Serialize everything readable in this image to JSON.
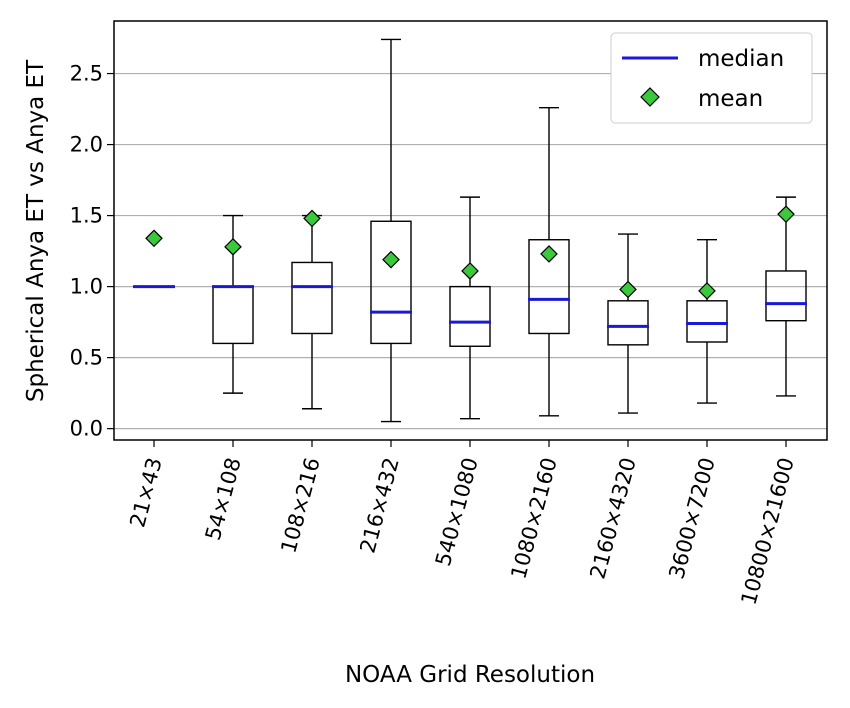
{
  "chart_data": {
    "type": "boxplot",
    "title": "",
    "xlabel": "NOAA Grid Resolution",
    "ylabel": "Spherical Anya ET vs Anya ET",
    "ylim": [
      -0.08,
      2.87
    ],
    "yticks": [
      0.0,
      0.5,
      1.0,
      1.5,
      2.0,
      2.5
    ],
    "ytick_labels": [
      "0.0",
      "0.5",
      "1.0",
      "1.5",
      "2.0",
      "2.5"
    ],
    "grid": "horizontal",
    "legend": {
      "placement": "top-right",
      "entries": [
        {
          "label": "median",
          "marker": "line",
          "color": "#1a1ad6"
        },
        {
          "label": "mean",
          "marker": "diamond",
          "color": "#3cc83c"
        }
      ]
    },
    "colors": {
      "median": "#1a1ad6",
      "mean": "#3cc83c",
      "box": "#000000",
      "grid": "#b0b0b0"
    },
    "categories": [
      "21×43",
      "54×108",
      "108×216",
      "216×432",
      "540×1080",
      "1080×2160",
      "2160×4320",
      "3600×7200",
      "10800×21600"
    ],
    "boxes": [
      {
        "whislo": 1.0,
        "q1": 1.0,
        "med": 1.0,
        "q3": 1.0,
        "whishi": 1.0,
        "mean": 1.34
      },
      {
        "whislo": 0.25,
        "q1": 0.6,
        "med": 1.0,
        "q3": 1.0,
        "whishi": 1.5,
        "mean": 1.28
      },
      {
        "whislo": 0.14,
        "q1": 0.67,
        "med": 1.0,
        "q3": 1.17,
        "whishi": 1.5,
        "mean": 1.48
      },
      {
        "whislo": 0.05,
        "q1": 0.6,
        "med": 0.82,
        "q3": 1.46,
        "whishi": 2.74,
        "mean": 1.19
      },
      {
        "whislo": 0.07,
        "q1": 0.58,
        "med": 0.75,
        "q3": 1.0,
        "whishi": 1.63,
        "mean": 1.11
      },
      {
        "whislo": 0.09,
        "q1": 0.67,
        "med": 0.91,
        "q3": 1.33,
        "whishi": 2.26,
        "mean": 1.23
      },
      {
        "whislo": 0.11,
        "q1": 0.59,
        "med": 0.72,
        "q3": 0.9,
        "whishi": 1.37,
        "mean": 0.98
      },
      {
        "whislo": 0.18,
        "q1": 0.61,
        "med": 0.74,
        "q3": 0.9,
        "whishi": 1.33,
        "mean": 0.97
      },
      {
        "whislo": 0.23,
        "q1": 0.76,
        "med": 0.88,
        "q3": 1.11,
        "whishi": 1.63,
        "mean": 1.51
      }
    ]
  }
}
